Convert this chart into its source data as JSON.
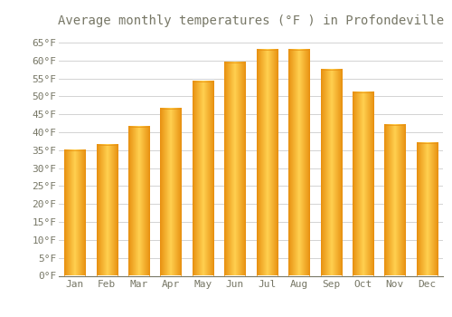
{
  "title": "Average monthly temperatures (°F ) in Profondeville",
  "months": [
    "Jan",
    "Feb",
    "Mar",
    "Apr",
    "May",
    "Jun",
    "Jul",
    "Aug",
    "Sep",
    "Oct",
    "Nov",
    "Dec"
  ],
  "values": [
    35,
    36.5,
    41.5,
    46.5,
    54,
    59.5,
    63,
    63,
    57.5,
    51,
    42,
    37
  ],
  "bar_color_center": "#FFD050",
  "bar_color_edge": "#E89010",
  "background_color": "#FFFFFF",
  "grid_color": "#CCCCCC",
  "text_color": "#777766",
  "ylim": [
    0,
    68
  ],
  "yticks": [
    0,
    5,
    10,
    15,
    20,
    25,
    30,
    35,
    40,
    45,
    50,
    55,
    60,
    65
  ],
  "title_fontsize": 10,
  "tick_fontsize": 8,
  "font_family": "monospace",
  "bar_width": 0.65
}
